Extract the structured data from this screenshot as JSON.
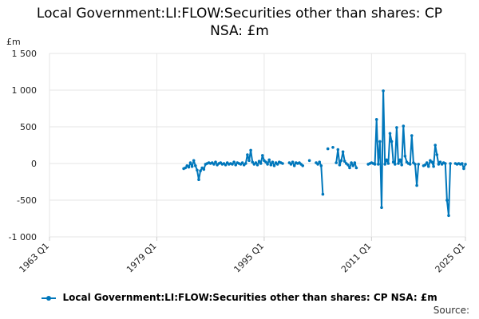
{
  "title_line1": "Local Government:LI:FLOW:Securities other than shares: CP",
  "title_line2": "NSA: £m",
  "legend_label": "Local Government:LI:FLOW:Securities other than shares: CP NSA: £m",
  "source_label": "Source:",
  "colors": {
    "series": "#0077bb",
    "grid": "#e6e6e6",
    "axis": "#cccccc"
  },
  "chart_data": {
    "type": "line",
    "title": "Local Government:LI:FLOW:Securities other than shares: CP NSA: £m",
    "y_unit": "£m",
    "ylim": [
      -1000,
      1500
    ],
    "y_ticks": [
      -1000,
      -500,
      0,
      500,
      1000,
      1500
    ],
    "y_tick_labels": [
      "-1 000",
      "-500",
      "0",
      "500",
      "1 000",
      "1 500"
    ],
    "xlim": [
      1963.0,
      2025.0
    ],
    "x_ticks": [
      1963.0,
      1979.0,
      1995.0,
      2011.0,
      2025.0
    ],
    "x_tick_labels": [
      "1963 Q1",
      "1979 Q1",
      "1995 Q1",
      "2011 Q1",
      "2025 Q1"
    ],
    "grid": true,
    "legend": "bottom",
    "series": [
      {
        "name": "Local Government:LI:FLOW:Securities other than shares: CP NSA: £m",
        "segments": [
          [
            [
              1983.0,
              -70
            ],
            [
              1983.25,
              -60
            ],
            [
              1983.5,
              -30
            ],
            [
              1983.75,
              -50
            ],
            [
              1984.0,
              10
            ],
            [
              1984.25,
              -40
            ],
            [
              1984.5,
              40
            ],
            [
              1984.75,
              -30
            ],
            [
              1985.0,
              -90
            ],
            [
              1985.25,
              -220
            ],
            [
              1985.5,
              -100
            ],
            [
              1985.75,
              -60
            ],
            [
              1986.0,
              -80
            ],
            [
              1986.25,
              -10
            ],
            [
              1986.5,
              0
            ],
            [
              1986.75,
              10
            ],
            [
              1987.0,
              0
            ],
            [
              1987.25,
              10
            ],
            [
              1987.5,
              -10
            ],
            [
              1987.75,
              20
            ],
            [
              1988.0,
              -20
            ],
            [
              1988.25,
              0
            ],
            [
              1988.5,
              10
            ],
            [
              1988.75,
              -10
            ],
            [
              1989.0,
              0
            ],
            [
              1989.25,
              -20
            ],
            [
              1989.5,
              10
            ],
            [
              1989.75,
              -10
            ],
            [
              1990.0,
              0
            ],
            [
              1990.25,
              -10
            ],
            [
              1990.5,
              20
            ],
            [
              1990.75,
              -20
            ],
            [
              1991.0,
              10
            ],
            [
              1991.25,
              0
            ],
            [
              1991.5,
              -10
            ],
            [
              1991.75,
              10
            ],
            [
              1992.0,
              -20
            ],
            [
              1992.25,
              0
            ],
            [
              1992.5,
              120
            ],
            [
              1992.75,
              40
            ],
            [
              1993.0,
              180
            ],
            [
              1993.25,
              20
            ],
            [
              1993.5,
              -10
            ],
            [
              1993.75,
              10
            ],
            [
              1994.0,
              -20
            ],
            [
              1994.25,
              30
            ],
            [
              1994.5,
              0
            ],
            [
              1994.75,
              110
            ],
            [
              1995.0,
              40
            ],
            [
              1995.25,
              20
            ],
            [
              1995.5,
              -10
            ],
            [
              1995.75,
              50
            ],
            [
              1996.0,
              -20
            ],
            [
              1996.25,
              20
            ],
            [
              1996.5,
              -30
            ],
            [
              1996.75,
              10
            ],
            [
              1997.0,
              -10
            ],
            [
              1997.25,
              20
            ],
            [
              1997.5,
              10
            ],
            [
              1997.75,
              0
            ]
          ],
          [
            [
              1998.75,
              10
            ],
            [
              1999.0,
              -10
            ],
            [
              1999.25,
              20
            ],
            [
              1999.5,
              -30
            ],
            [
              1999.75,
              10
            ],
            [
              2000.0,
              0
            ],
            [
              2000.25,
              10
            ],
            [
              2000.5,
              -10
            ],
            [
              2000.75,
              -30
            ]
          ],
          [
            [
              2001.75,
              40
            ]
          ],
          [
            [
              2002.75,
              10
            ],
            [
              2003.0,
              -10
            ],
            [
              2003.25,
              20
            ],
            [
              2003.5,
              -30
            ],
            [
              2003.75,
              -420
            ]
          ],
          [
            [
              2004.5,
              200
            ]
          ],
          [
            [
              2005.25,
              220
            ]
          ],
          [
            [
              2005.75,
              10
            ],
            [
              2006.0,
              190
            ],
            [
              2006.25,
              -20
            ],
            [
              2006.5,
              40
            ],
            [
              2006.75,
              160
            ],
            [
              2007.0,
              30
            ],
            [
              2007.25,
              0
            ],
            [
              2007.5,
              -20
            ],
            [
              2007.75,
              -60
            ],
            [
              2008.0,
              10
            ],
            [
              2008.25,
              -30
            ],
            [
              2008.5,
              10
            ],
            [
              2008.75,
              -60
            ]
          ],
          [
            [
              2010.5,
              -10
            ],
            [
              2010.75,
              0
            ],
            [
              2011.0,
              10
            ],
            [
              2011.25,
              0
            ],
            [
              2011.5,
              -10
            ],
            [
              2011.75,
              600
            ],
            [
              2012.0,
              -10
            ],
            [
              2012.25,
              300
            ],
            [
              2012.5,
              -600
            ],
            [
              2012.75,
              990
            ],
            [
              2013.0,
              -10
            ],
            [
              2013.25,
              50
            ],
            [
              2013.5,
              0
            ],
            [
              2013.75,
              410
            ],
            [
              2014.0,
              300
            ],
            [
              2014.25,
              20
            ],
            [
              2014.5,
              -10
            ],
            [
              2014.75,
              490
            ],
            [
              2015.0,
              0
            ],
            [
              2015.25,
              50
            ],
            [
              2015.5,
              -20
            ],
            [
              2015.75,
              510
            ],
            [
              2016.0,
              100
            ],
            [
              2016.25,
              20
            ],
            [
              2016.5,
              0
            ],
            [
              2016.75,
              -10
            ],
            [
              2017.0,
              380
            ],
            [
              2017.25,
              10
            ],
            [
              2017.5,
              -10
            ],
            [
              2017.75,
              -300
            ],
            [
              2018.0,
              -10
            ]
          ],
          [
            [
              2018.75,
              -30
            ],
            [
              2019.0,
              -20
            ],
            [
              2019.25,
              10
            ],
            [
              2019.5,
              -40
            ],
            [
              2019.75,
              40
            ],
            [
              2020.0,
              20
            ],
            [
              2020.25,
              -40
            ],
            [
              2020.5,
              250
            ],
            [
              2020.75,
              120
            ],
            [
              2021.0,
              -10
            ],
            [
              2021.25,
              20
            ],
            [
              2021.5,
              -10
            ],
            [
              2021.75,
              10
            ],
            [
              2022.0,
              0
            ],
            [
              2022.25,
              -500
            ],
            [
              2022.5,
              -710
            ],
            [
              2022.75,
              0
            ]
          ],
          [
            [
              2023.5,
              0
            ],
            [
              2023.75,
              -10
            ],
            [
              2024.0,
              0
            ],
            [
              2024.25,
              -10
            ],
            [
              2024.5,
              0
            ],
            [
              2024.75,
              -70
            ],
            [
              2025.0,
              -10
            ]
          ]
        ]
      }
    ]
  }
}
